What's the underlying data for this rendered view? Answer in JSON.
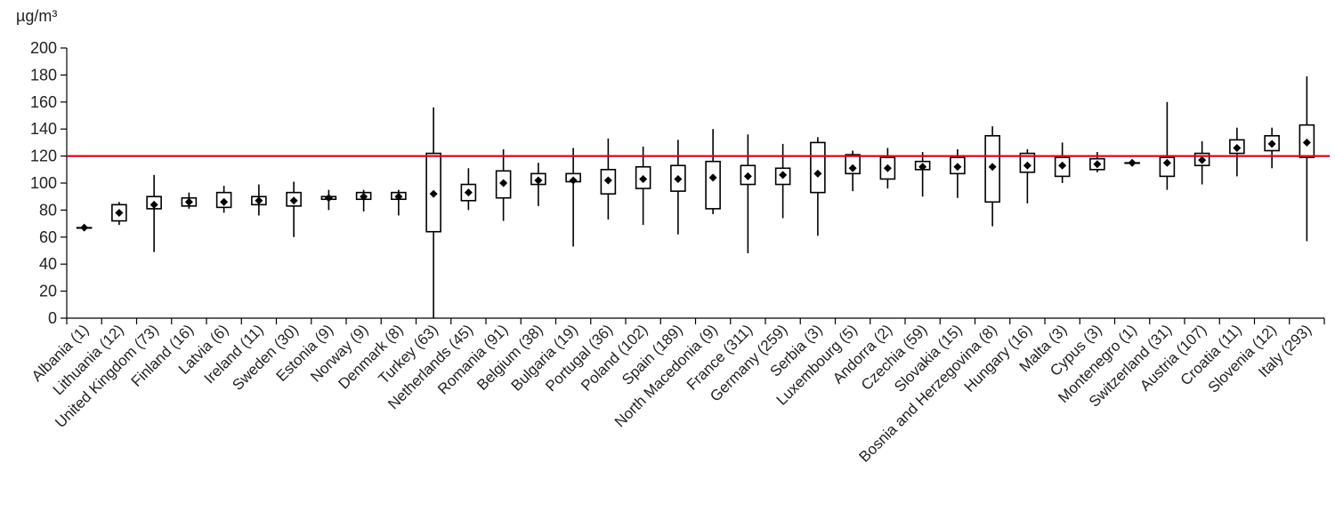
{
  "chart_data": {
    "type": "box",
    "ylabel": "µg/m³",
    "ylim": [
      0,
      200
    ],
    "yticks": [
      0,
      20,
      40,
      60,
      80,
      100,
      120,
      140,
      160,
      180,
      200
    ],
    "reference_line": {
      "value": 120,
      "color": "#e3001b"
    },
    "colors": {
      "box": "#000000",
      "marker": "#000000",
      "axis": "#000000"
    },
    "categories": [
      "Albania (1)",
      "Lithuania (12)",
      "United Kingdom (73)",
      "Finland (16)",
      "Latvia (6)",
      "Ireland (11)",
      "Sweden (30)",
      "Estonia (9)",
      "Norway (9)",
      "Denmark (8)",
      "Turkey (63)",
      "Netherlands (45)",
      "Romania (91)",
      "Belgium (38)",
      "Bulgaria (19)",
      "Portugal (36)",
      "Poland (102)",
      "Spain (189)",
      "North Macedonia (9)",
      "France (311)",
      "Germany (259)",
      "Serbia (3)",
      "Luxembourg (5)",
      "Andorra (2)",
      "Czechia (59)",
      "Slovakia (15)",
      "Bosnia and Herzegovina (8)",
      "Hungary (16)",
      "Malta (3)",
      "Cypus (3)",
      "Montenegro (1)",
      "Switzerland (31)",
      "Austria (107)",
      "Croatia (11)",
      "Slovenia (12)",
      "Italy (293)"
    ],
    "series": [
      {
        "min": [
          67,
          69,
          49,
          81,
          78,
          76,
          60,
          80,
          79,
          76,
          0,
          80,
          72,
          83,
          53,
          73,
          69,
          62,
          77,
          48,
          74,
          61,
          94,
          96,
          90,
          89,
          68,
          85,
          100,
          108,
          115,
          95,
          99,
          105,
          111,
          57
        ],
        "q1": [
          67,
          72,
          81,
          83,
          82,
          84,
          83,
          88,
          88,
          88,
          64,
          87,
          89,
          99,
          101,
          92,
          96,
          94,
          81,
          99,
          99,
          93,
          107,
          103,
          110,
          107,
          86,
          108,
          105,
          110,
          115,
          105,
          113,
          122,
          124,
          119
        ],
        "median": [
          67,
          78,
          84,
          86,
          86,
          87,
          87,
          89,
          90,
          90,
          92,
          93,
          100,
          102,
          102,
          102,
          103,
          103,
          104,
          105,
          106,
          107,
          111,
          111,
          112,
          112,
          112,
          113,
          113,
          114,
          115,
          115,
          117,
          126,
          129,
          130
        ],
        "q3": [
          67,
          84,
          90,
          89,
          93,
          90,
          93,
          90,
          93,
          93,
          122,
          99,
          109,
          107,
          107,
          110,
          112,
          113,
          116,
          113,
          111,
          130,
          121,
          119,
          116,
          119,
          135,
          122,
          119,
          118,
          115,
          119,
          122,
          132,
          135,
          143
        ],
        "max": [
          67,
          86,
          106,
          93,
          98,
          99,
          101,
          95,
          95,
          95,
          156,
          111,
          125,
          115,
          126,
          133,
          127,
          132,
          140,
          136,
          129,
          134,
          124,
          126,
          123,
          125,
          142,
          125,
          130,
          123,
          115,
          160,
          131,
          141,
          141,
          179
        ]
      }
    ]
  }
}
